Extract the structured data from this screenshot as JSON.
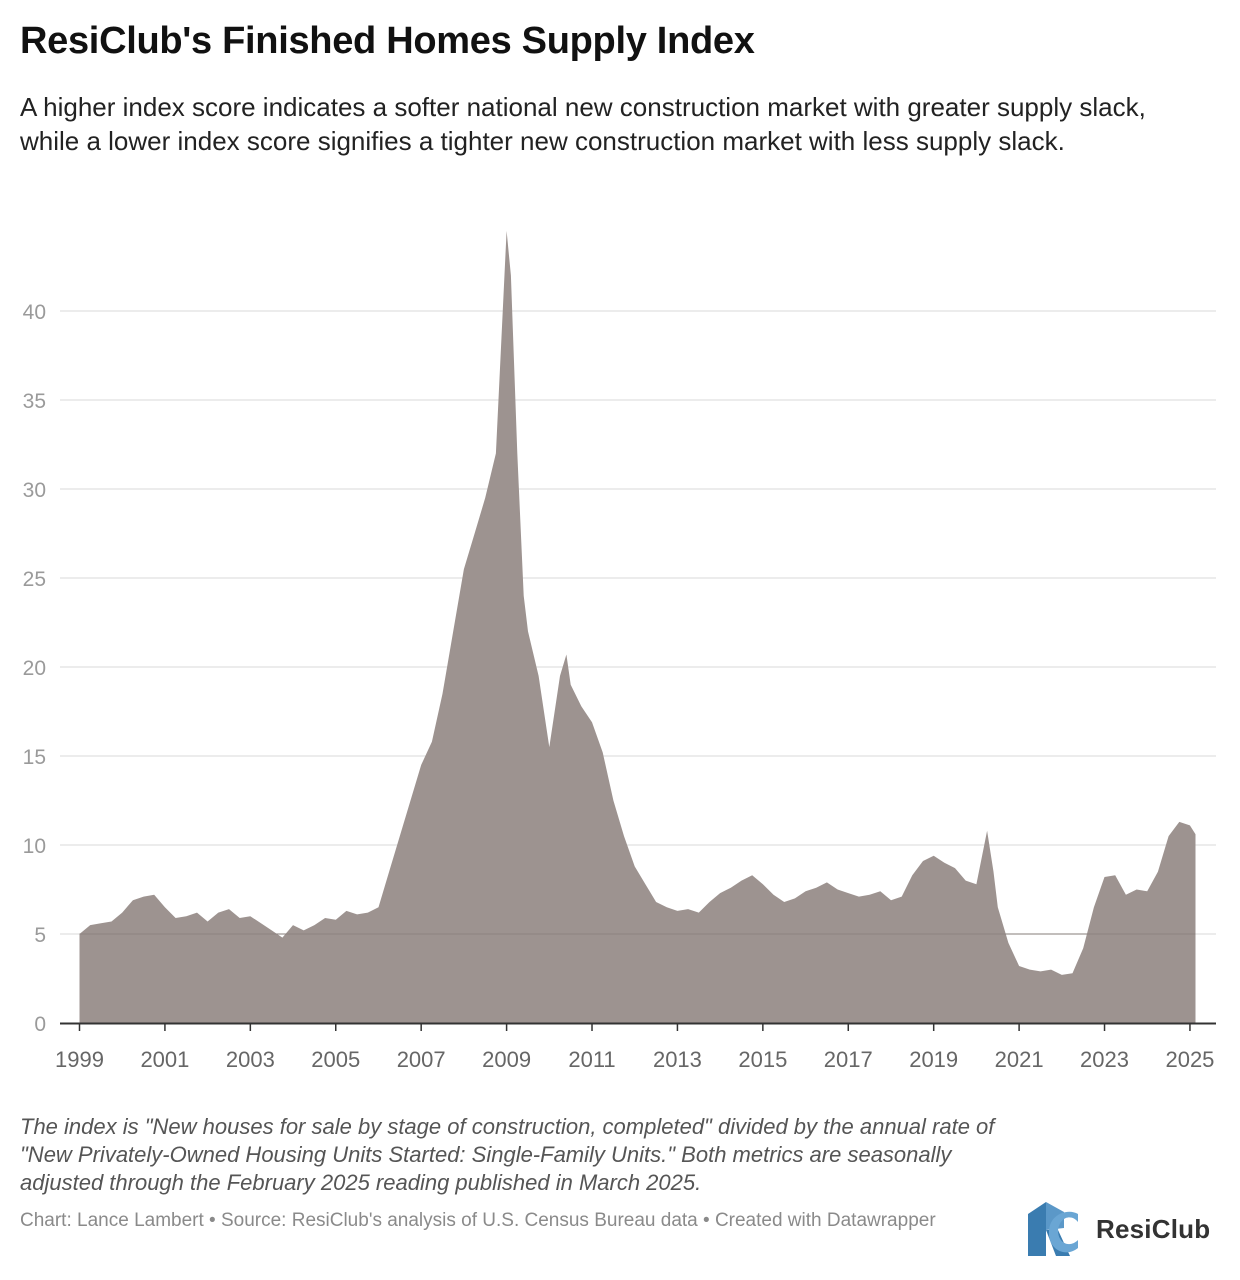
{
  "header": {
    "title": "ResiClub's Finished Homes Supply Index",
    "subtitle": "A higher index score indicates a softer national new construction market with greater supply slack, while a lower index score signifies a tighter new construction market with less supply slack."
  },
  "footer": {
    "note": "The index is \"New houses for sale by stage of construction, completed\" divided by the annual rate of \"New Privately-Owned Housing Units Started: Single-Family Units.\" Both metrics are seasonally adjusted through the February 2025 reading published in March 2025.",
    "credit": "Chart: Lance Lambert • Source: ResiClub's analysis of U.S. Census Bureau data • Created with Datawrapper"
  },
  "brand": {
    "name": "ResiClub",
    "logo_icon": "rc-logo-icon",
    "logo_color": "#3a7cb0"
  },
  "colors": {
    "area_fill": "#9d9390",
    "grid": "#e1e1e1",
    "axis": "#333333",
    "tick_label": "#9a9a9a"
  },
  "chart_data": {
    "type": "area",
    "title": "ResiClub's Finished Homes Supply Index",
    "xlabel": "",
    "ylabel": "",
    "xlim": [
      1999.0,
      2025.13
    ],
    "ylim": [
      0,
      45
    ],
    "grid": true,
    "y_ticks": [
      0,
      5,
      10,
      15,
      20,
      25,
      30,
      35,
      40
    ],
    "x_ticks": [
      "1999",
      "2001",
      "2003",
      "2005",
      "2007",
      "2009",
      "2011",
      "2013",
      "2015",
      "2017",
      "2019",
      "2021",
      "2023",
      "2025"
    ],
    "series": [
      {
        "name": "Finished Homes Supply Index",
        "x": [
          1999.0,
          1999.25,
          1999.5,
          1999.75,
          2000.0,
          2000.25,
          2000.5,
          2000.75,
          2001.0,
          2001.25,
          2001.5,
          2001.75,
          2002.0,
          2002.25,
          2002.5,
          2002.75,
          2003.0,
          2003.25,
          2003.5,
          2003.75,
          2004.0,
          2004.25,
          2004.5,
          2004.75,
          2005.0,
          2005.25,
          2005.5,
          2005.75,
          2006.0,
          2006.25,
          2006.5,
          2006.75,
          2007.0,
          2007.25,
          2007.5,
          2007.75,
          2008.0,
          2008.25,
          2008.5,
          2008.75,
          2009.0,
          2009.1,
          2009.25,
          2009.4,
          2009.5,
          2009.75,
          2010.0,
          2010.25,
          2010.4,
          2010.5,
          2010.75,
          2011.0,
          2011.25,
          2011.5,
          2011.75,
          2012.0,
          2012.25,
          2012.5,
          2012.75,
          2013.0,
          2013.25,
          2013.5,
          2013.75,
          2014.0,
          2014.25,
          2014.5,
          2014.75,
          2015.0,
          2015.25,
          2015.5,
          2015.75,
          2016.0,
          2016.25,
          2016.5,
          2016.75,
          2017.0,
          2017.25,
          2017.5,
          2017.75,
          2018.0,
          2018.25,
          2018.5,
          2018.75,
          2019.0,
          2019.25,
          2019.5,
          2019.75,
          2020.0,
          2020.25,
          2020.4,
          2020.5,
          2020.75,
          2021.0,
          2021.25,
          2021.5,
          2021.75,
          2022.0,
          2022.25,
          2022.5,
          2022.75,
          2023.0,
          2023.25,
          2023.5,
          2023.75,
          2024.0,
          2024.25,
          2024.5,
          2024.75,
          2025.0,
          2025.13
        ],
        "values": [
          5.0,
          5.5,
          5.6,
          5.7,
          6.2,
          6.9,
          7.1,
          7.2,
          6.5,
          5.9,
          6.0,
          6.2,
          5.7,
          6.2,
          6.4,
          5.9,
          6.0,
          5.6,
          5.2,
          4.8,
          5.5,
          5.2,
          5.5,
          5.9,
          5.8,
          6.3,
          6.1,
          6.2,
          6.5,
          8.5,
          10.5,
          12.5,
          14.5,
          15.8,
          18.5,
          22.0,
          25.5,
          27.5,
          29.5,
          32.0,
          44.5,
          42.0,
          32.0,
          24.0,
          22.0,
          19.5,
          15.5,
          19.5,
          20.7,
          19.0,
          17.8,
          16.9,
          15.2,
          12.5,
          10.5,
          8.8,
          7.8,
          6.8,
          6.5,
          6.3,
          6.4,
          6.2,
          6.8,
          7.3,
          7.6,
          8.0,
          8.3,
          7.8,
          7.2,
          6.8,
          7.0,
          7.4,
          7.6,
          7.9,
          7.5,
          7.3,
          7.1,
          7.2,
          7.4,
          6.9,
          7.1,
          8.3,
          9.1,
          9.4,
          9.0,
          8.7,
          8.0,
          7.8,
          10.8,
          8.5,
          6.5,
          4.5,
          3.2,
          3.0,
          2.9,
          3.0,
          2.7,
          2.8,
          4.2,
          6.5,
          8.2,
          8.3,
          7.2,
          7.5,
          7.4,
          8.5,
          10.5,
          11.3,
          11.1,
          10.6
        ]
      }
    ]
  }
}
